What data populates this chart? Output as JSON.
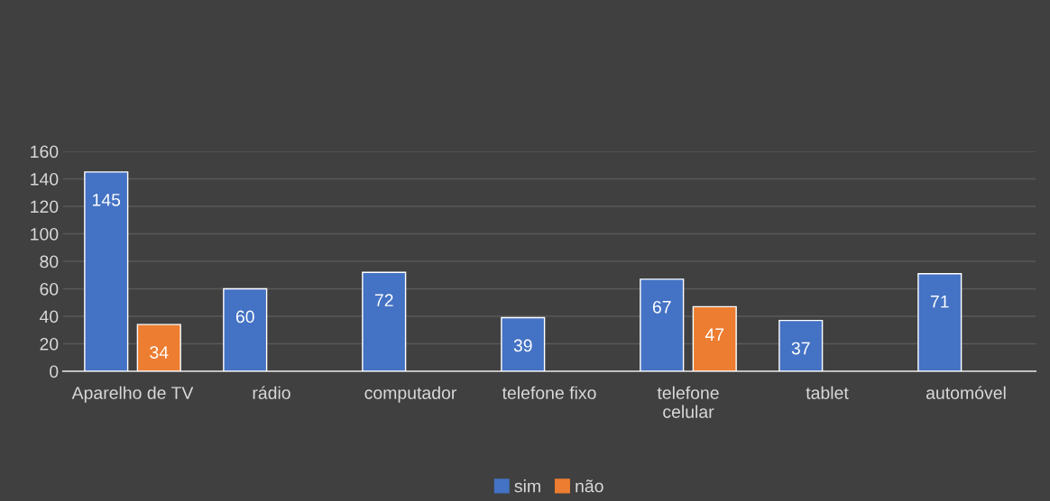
{
  "chart_data": {
    "type": "bar",
    "categories": [
      "Aparelho de TV",
      "rádio",
      "computador",
      "telefone fixo",
      "telefone celular",
      "tablet",
      "automóvel"
    ],
    "series": [
      {
        "name": "sim",
        "color": "#4472c4",
        "values": [
          145,
          60,
          72,
          39,
          67,
          37,
          71
        ]
      },
      {
        "name": "não",
        "color": "#ed7d31",
        "values": [
          34,
          null,
          null,
          null,
          47,
          null,
          null
        ]
      }
    ],
    "ylim": [
      0,
      160
    ],
    "yticks": [
      0,
      20,
      40,
      60,
      80,
      100,
      120,
      140,
      160
    ],
    "grid": "y",
    "legend": "bottom",
    "data_labels": true
  }
}
